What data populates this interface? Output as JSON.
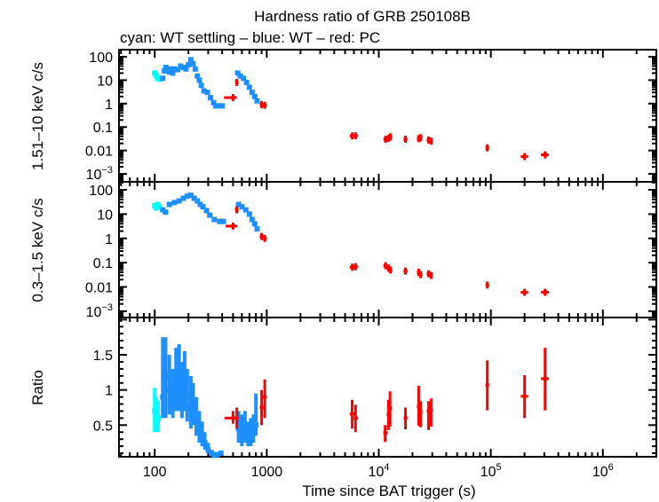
{
  "chart_data": {
    "type": "scatter",
    "title": "Hardness ratio of GRB 250108B",
    "subtitle": "cyan: WT settling – blue: WT – red: PC",
    "xlabel": "Time since BAT trigger (s)",
    "xscale": "log",
    "xlim": [
      48,
      3000000
    ],
    "xticks": [
      {
        "base": "100",
        "exp": ""
      },
      {
        "base": "1000",
        "exp": ""
      },
      {
        "base": "10",
        "exp": "4"
      },
      {
        "base": "10",
        "exp": "5"
      },
      {
        "base": "10",
        "exp": "6"
      }
    ],
    "colors": {
      "cyan": "#00ffff",
      "blue": "#1e8fff",
      "red": "#ff0000"
    },
    "panels": [
      {
        "ylabel": "1.51–10 keV c/s",
        "yscale": "log",
        "ylim": [
          0.00046,
          200
        ],
        "yticks": [
          {
            "base": "100",
            "exp": ""
          },
          {
            "base": "10",
            "exp": ""
          },
          {
            "base": "1",
            "exp": ""
          },
          {
            "base": "0.1",
            "exp": ""
          },
          {
            "base": "0.01",
            "exp": ""
          },
          {
            "base": "10",
            "exp": "−3"
          }
        ],
        "cyan": [
          [
            100,
            20
          ],
          [
            103,
            16
          ],
          [
            106,
            12
          ],
          [
            110,
            11
          ]
        ],
        "blue": [
          [
            118,
            12
          ],
          [
            122,
            25
          ],
          [
            126,
            35
          ],
          [
            130,
            25
          ],
          [
            135,
            22
          ],
          [
            140,
            30
          ],
          [
            145,
            20
          ],
          [
            150,
            30
          ],
          [
            160,
            28
          ],
          [
            170,
            40
          ],
          [
            180,
            35
          ],
          [
            190,
            30
          ],
          [
            200,
            45
          ],
          [
            210,
            75
          ],
          [
            220,
            50
          ],
          [
            230,
            30
          ],
          [
            240,
            15
          ],
          [
            250,
            10
          ],
          [
            260,
            6
          ],
          [
            275,
            3.5
          ],
          [
            295,
            3
          ],
          [
            315,
            1.8
          ],
          [
            335,
            1.1
          ],
          [
            350,
            0.8
          ],
          [
            375,
            0.8
          ],
          [
            400,
            0.8
          ],
          [
            550,
            20
          ],
          [
            580,
            15
          ],
          [
            620,
            12
          ],
          [
            660,
            8
          ],
          [
            700,
            5
          ],
          [
            740,
            3
          ],
          [
            780,
            2
          ],
          [
            820,
            1.3
          ]
        ],
        "red": [
          [
            500,
            1.8,
            415,
            540
          ],
          [
            540,
            8,
            530,
            550
          ],
          [
            900,
            0.9,
            870,
            940
          ],
          [
            960,
            0.85,
            930,
            1000
          ],
          [
            5800,
            0.042,
            5500,
            6100
          ],
          [
            6200,
            0.042,
            6000,
            6500
          ],
          [
            11500,
            0.03,
            11000,
            12000
          ],
          [
            12200,
            0.033,
            11800,
            12600
          ],
          [
            12700,
            0.038,
            12400,
            13100
          ],
          [
            17300,
            0.03,
            16700,
            18000
          ],
          [
            22700,
            0.032,
            22000,
            23500
          ],
          [
            23600,
            0.035,
            23000,
            24500
          ],
          [
            27800,
            0.028,
            27000,
            28600
          ],
          [
            29300,
            0.025,
            28600,
            30000
          ],
          [
            93000,
            0.013,
            90000,
            96000
          ],
          [
            200000,
            0.0055,
            185000,
            215000
          ],
          [
            305000,
            0.0065,
            280000,
            330000
          ]
        ]
      },
      {
        "ylabel": "0.3–1.5 keV c/s",
        "yscale": "log",
        "ylim": [
          0.00055,
          214
        ],
        "yticks": [
          {
            "base": "100",
            "exp": ""
          },
          {
            "base": "10",
            "exp": ""
          },
          {
            "base": "1",
            "exp": ""
          },
          {
            "base": "0.1",
            "exp": ""
          },
          {
            "base": "0.01",
            "exp": ""
          },
          {
            "base": "10",
            "exp": "−3"
          }
        ],
        "cyan": [
          [
            100,
            22
          ],
          [
            103,
            18
          ],
          [
            106,
            25
          ],
          [
            110,
            20
          ]
        ],
        "blue": [
          [
            118,
            15
          ],
          [
            125,
            12
          ],
          [
            135,
            25
          ],
          [
            150,
            30
          ],
          [
            165,
            35
          ],
          [
            180,
            45
          ],
          [
            195,
            55
          ],
          [
            210,
            60
          ],
          [
            225,
            45
          ],
          [
            240,
            35
          ],
          [
            255,
            25
          ],
          [
            270,
            20
          ],
          [
            290,
            14
          ],
          [
            310,
            9
          ],
          [
            340,
            6
          ],
          [
            380,
            5
          ],
          [
            410,
            5
          ],
          [
            560,
            25
          ],
          [
            600,
            20
          ],
          [
            650,
            15
          ],
          [
            700,
            10
          ],
          [
            740,
            6
          ],
          [
            780,
            4
          ],
          [
            820,
            2.5
          ]
        ],
        "red": [
          [
            500,
            3.2,
            430,
            545
          ],
          [
            540,
            15,
            530,
            550
          ],
          [
            900,
            1.2,
            870,
            940
          ],
          [
            960,
            1.0,
            930,
            1000
          ],
          [
            5800,
            0.065,
            5500,
            6100
          ],
          [
            6200,
            0.068,
            6000,
            6500
          ],
          [
            11500,
            0.075,
            11000,
            12000
          ],
          [
            12200,
            0.06,
            11800,
            12600
          ],
          [
            12700,
            0.05,
            12400,
            13100
          ],
          [
            17300,
            0.045,
            16700,
            18000
          ],
          [
            22700,
            0.04,
            22000,
            23500
          ],
          [
            23600,
            0.032,
            23000,
            24500
          ],
          [
            27800,
            0.035,
            27000,
            28600
          ],
          [
            29300,
            0.03,
            28600,
            30000
          ],
          [
            93000,
            0.012,
            90000,
            96000
          ],
          [
            200000,
            0.006,
            185000,
            215000
          ],
          [
            305000,
            0.006,
            280000,
            330000
          ]
        ]
      },
      {
        "ylabel": "Ratio",
        "yscale": "linear",
        "ylim": [
          0.05,
          2.03
        ],
        "yticks": [
          {
            "base": "0.5",
            "exp": "",
            "v": 0.5
          },
          {
            "base": "1",
            "exp": "",
            "v": 1
          },
          {
            "base": "1.5",
            "exp": "",
            "v": 1.5
          }
        ],
        "cyan": [
          [
            100,
            0.7,
            0.4,
            1.03
          ],
          [
            103,
            0.65,
            0.45,
            0.9
          ],
          [
            107,
            0.6,
            0.4,
            0.85
          ]
        ],
        "blue": [
          [
            118,
            0.9,
            0.6,
            1.75
          ],
          [
            125,
            1.2,
            0.6,
            1.75
          ],
          [
            135,
            1.0,
            0.65,
            1.5
          ],
          [
            145,
            0.85,
            0.6,
            1.3
          ],
          [
            155,
            1.1,
            0.7,
            1.6
          ],
          [
            165,
            1.3,
            0.7,
            1.65
          ],
          [
            175,
            1.0,
            0.6,
            1.4
          ],
          [
            185,
            1.2,
            0.7,
            1.55
          ],
          [
            195,
            0.9,
            0.55,
            1.3
          ],
          [
            210,
            0.75,
            0.45,
            1.2
          ],
          [
            220,
            0.8,
            0.5,
            1.1
          ],
          [
            235,
            0.6,
            0.35,
            0.9
          ],
          [
            250,
            0.45,
            0.25,
            0.7
          ],
          [
            265,
            0.35,
            0.2,
            0.55
          ],
          [
            280,
            0.25,
            0.15,
            0.4
          ],
          [
            300,
            0.15,
            0.1,
            0.25
          ],
          [
            320,
            0.1,
            0.06,
            0.15
          ],
          [
            340,
            0.07,
            0.05,
            0.1
          ],
          [
            360,
            0.08,
            0.06,
            0.1
          ],
          [
            390,
            0.1,
            0.08,
            0.12
          ],
          [
            560,
            0.45,
            0.25,
            0.7
          ],
          [
            600,
            0.4,
            0.2,
            0.65
          ],
          [
            640,
            0.42,
            0.25,
            0.7
          ],
          [
            680,
            0.35,
            0.2,
            0.55
          ],
          [
            720,
            0.38,
            0.2,
            0.6
          ],
          [
            760,
            0.4,
            0.25,
            0.65
          ],
          [
            800,
            0.5,
            0.35,
            0.95
          ]
        ],
        "red": [
          [
            500,
            0.6,
            420,
            560,
            0.52,
            0.7
          ],
          [
            540,
            0.6,
            530,
            550,
            0.45,
            0.75
          ],
          [
            900,
            0.75,
            870,
            930,
            0.5,
            1.0
          ],
          [
            960,
            0.9,
            930,
            1000,
            0.6,
            1.15
          ],
          [
            5780,
            0.66,
            5500,
            6100,
            0.45,
            0.86
          ],
          [
            6200,
            0.6,
            6000,
            6500,
            0.4,
            0.79
          ],
          [
            11400,
            0.39,
            11000,
            12000,
            0.26,
            0.5
          ],
          [
            12200,
            0.65,
            11800,
            12600,
            0.43,
            0.86
          ],
          [
            12600,
            0.74,
            12300,
            13100,
            0.48,
            0.98
          ],
          [
            17300,
            0.6,
            16700,
            18000,
            0.44,
            0.75
          ],
          [
            22700,
            0.77,
            22000,
            23500,
            0.49,
            1.06
          ],
          [
            23600,
            0.69,
            23000,
            24500,
            0.47,
            0.84
          ],
          [
            27800,
            0.7,
            27000,
            28600,
            0.43,
            0.84
          ],
          [
            29300,
            0.71,
            28600,
            30000,
            0.48,
            0.88
          ],
          [
            93000,
            1.07,
            90000,
            96000,
            0.71,
            1.42
          ],
          [
            200000,
            0.91,
            185000,
            215000,
            0.6,
            1.21
          ],
          [
            305000,
            1.16,
            280000,
            330000,
            0.71,
            1.6
          ]
        ]
      }
    ]
  }
}
